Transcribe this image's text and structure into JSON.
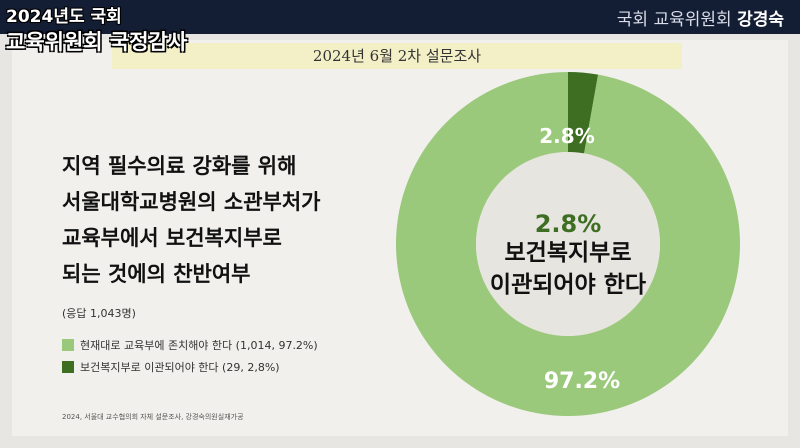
{
  "header": {
    "line1": "2024년도 국회",
    "line2": "교육위원회 국정감사",
    "committee": "국회 교육위원회",
    "member": "강경숙"
  },
  "survey_title": "2024년 6월 2차 설문조사",
  "question_lines": [
    "지역 필수의료 강화를 위해",
    "서울대학교병원의 소관부처가",
    "교육부에서 보건복지부로",
    "되는 것에의 찬반여부"
  ],
  "respondents": "(응답 1,043명)",
  "legend": [
    {
      "label": "현재대로 교육부에 존치해야 한다 (1,014, 97.2%)",
      "color": "#9bc97c"
    },
    {
      "label": "보건복지부로 이관되어야 한다 (29, 2,8%)",
      "color": "#3e6e22"
    }
  ],
  "source": "2024, 서울대 교수협의회 자체 설문조사, 강경숙의원실재가공",
  "chart_data": {
    "type": "pie",
    "donut": true,
    "slices": [
      {
        "label": "현재대로 교육부에 존치해야 한다",
        "count": 1014,
        "value": 97.2,
        "display": "97.2%",
        "color": "#9bc97c"
      },
      {
        "label": "보건복지부로 이관되어야 한다",
        "count": 29,
        "value": 2.8,
        "display": "2.8%",
        "color": "#3e6e22"
      }
    ],
    "center": {
      "value": "2.8%",
      "lines": [
        "보건복지부로",
        "이관되어야 한다"
      ],
      "value_color": "#3e6e22",
      "text_color": "#111111"
    }
  }
}
